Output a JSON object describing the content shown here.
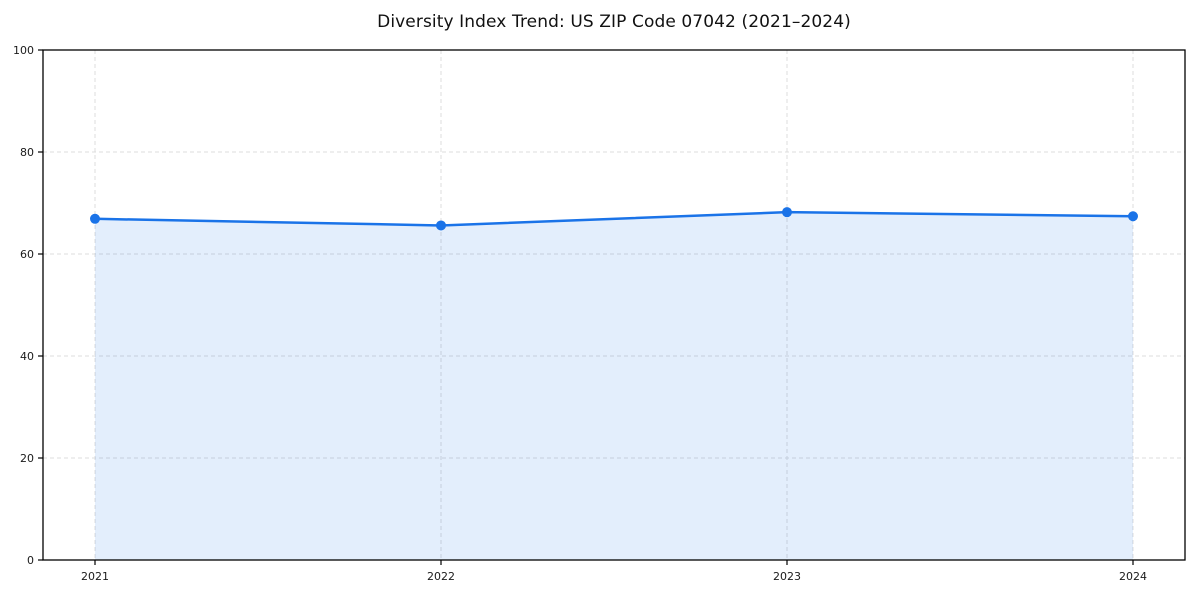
{
  "chart_data": {
    "type": "area",
    "title": "Diversity Index Trend: US ZIP Code 07042 (2021–2024)",
    "x": [
      2021,
      2022,
      2023,
      2024
    ],
    "values": [
      66.9,
      65.6,
      68.2,
      67.4
    ],
    "xtick_labels": [
      "2021",
      "2022",
      "2023",
      "2024"
    ],
    "ytick_labels": [
      "0",
      "20",
      "40",
      "60",
      "80",
      "100"
    ],
    "yticks": [
      0,
      20,
      40,
      60,
      80,
      100
    ],
    "ylim": [
      0,
      100
    ],
    "xlabel": "",
    "ylabel": "",
    "grid": true,
    "grid_style": "dashed",
    "legend": false,
    "marker": "circle",
    "colors": {
      "line": "#1a73e8",
      "marker": "#1a73e8",
      "fill": "rgba(26,115,232,0.12)",
      "grid": "#dcdcdc",
      "axis_frame": "#000000",
      "tick_text": "#1a1a1a",
      "background": "#ffffff"
    }
  }
}
